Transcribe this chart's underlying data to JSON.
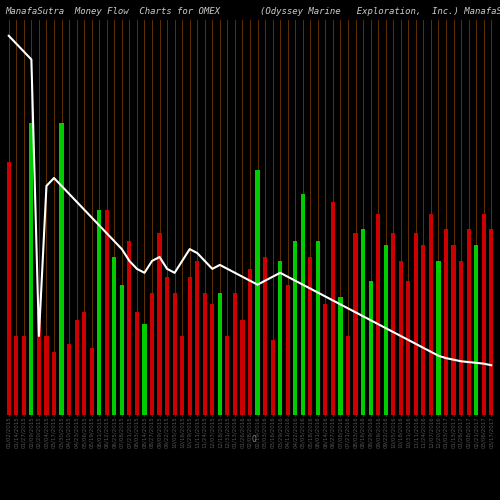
{
  "title_left": "ManafaSutra  Money Flow  Charts for OMEX",
  "title_right": "(Odyssey Marine   Exploration,  Inc.) ManafaSutra.com",
  "bg_color": "#000000",
  "bar_colors": [
    "red",
    "red",
    "red",
    "green",
    "red",
    "red",
    "red",
    "green",
    "red",
    "red",
    "red",
    "red",
    "green",
    "red",
    "green",
    "green",
    "red",
    "red",
    "green",
    "red",
    "red",
    "red",
    "red",
    "red",
    "red",
    "red",
    "red",
    "red",
    "green",
    "red",
    "red",
    "red",
    "red",
    "green",
    "red",
    "red",
    "green",
    "red",
    "green",
    "green",
    "red",
    "green",
    "red",
    "red",
    "green",
    "red",
    "red",
    "green",
    "green",
    "red",
    "green",
    "red",
    "red",
    "red",
    "red",
    "red",
    "red",
    "green",
    "red",
    "red",
    "red",
    "red",
    "green",
    "red",
    "red"
  ],
  "bar_heights": [
    320,
    100,
    100,
    370,
    130,
    100,
    80,
    370,
    90,
    120,
    130,
    85,
    260,
    260,
    200,
    165,
    220,
    130,
    115,
    155,
    230,
    175,
    155,
    100,
    175,
    195,
    155,
    140,
    155,
    100,
    155,
    120,
    185,
    310,
    200,
    95,
    195,
    165,
    220,
    280,
    200,
    220,
    140,
    270,
    150,
    100,
    230,
    235,
    170,
    255,
    215,
    230,
    195,
    170,
    230,
    215,
    255,
    195,
    235,
    215,
    195,
    235,
    215,
    255,
    235
  ],
  "line_values": [
    480,
    470,
    460,
    450,
    100,
    290,
    300,
    290,
    280,
    270,
    260,
    250,
    240,
    230,
    220,
    210,
    195,
    185,
    180,
    195,
    200,
    185,
    180,
    195,
    210,
    205,
    195,
    185,
    190,
    185,
    180,
    175,
    170,
    165,
    170,
    175,
    180,
    175,
    170,
    165,
    160,
    155,
    150,
    145,
    140,
    135,
    130,
    125,
    120,
    115,
    110,
    105,
    100,
    95,
    90,
    85,
    80,
    75,
    72,
    70,
    68,
    67,
    66,
    65,
    63
  ],
  "xlabels": [
    "01/02/2015",
    "01/14/2015",
    "01/27/2015",
    "02/09/2015",
    "02/20/2015",
    "03/04/2015",
    "03/17/2015",
    "03/30/2015",
    "04/10/2015",
    "04/23/2015",
    "05/06/2015",
    "05/19/2015",
    "06/01/2015",
    "06/12/2015",
    "06/25/2015",
    "07/08/2015",
    "07/21/2015",
    "08/03/2015",
    "08/14/2015",
    "08/27/2015",
    "09/09/2015",
    "09/22/2015",
    "10/05/2015",
    "10/16/2015",
    "10/29/2015",
    "11/11/2015",
    "11/24/2015",
    "12/07/2015",
    "12/18/2015",
    "12/31/2015",
    "01/13/2016",
    "01/26/2016",
    "02/08/2016",
    "02/19/2016",
    "03/03/2016",
    "03/16/2016",
    "03/29/2016",
    "04/11/2016",
    "04/22/2016",
    "05/05/2016",
    "05/18/2016",
    "06/01/2016",
    "06/14/2016",
    "06/27/2016",
    "07/08/2016",
    "07/21/2016",
    "08/03/2016",
    "08/16/2016",
    "08/29/2016",
    "09/09/2016",
    "09/22/2016",
    "10/05/2016",
    "10/18/2016",
    "10/31/2016",
    "11/11/2016",
    "11/24/2016",
    "12/07/2016",
    "12/20/2016",
    "01/03/2017",
    "01/13/2017",
    "01/26/2017",
    "02/08/2017",
    "02/21/2017",
    "03/06/2017",
    "03/17/2017"
  ],
  "line_color": "#ffffff",
  "red_color": "#cc0000",
  "green_color": "#00cc00",
  "orange_line_color": "#8B4500",
  "title_color": "#cccccc",
  "title_fontsize": 6.5,
  "xlabel_fontsize": 4.0,
  "ymax": 500,
  "zero_label": "0"
}
